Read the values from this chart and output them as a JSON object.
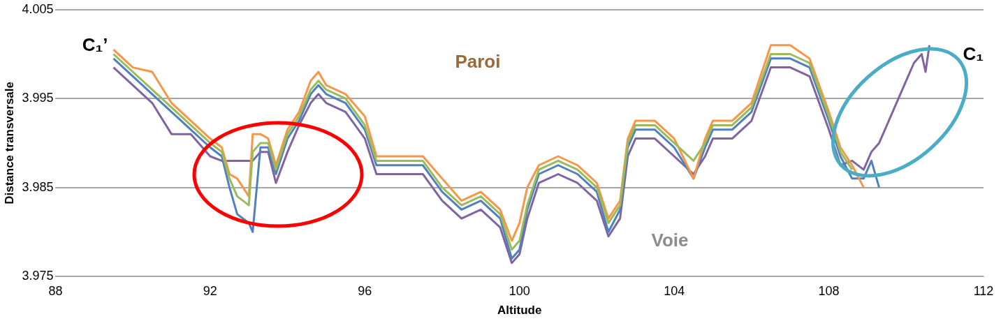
{
  "chart_data": {
    "type": "line",
    "xlabel": "Altitude",
    "ylabel": "Distance transversale",
    "xlim": [
      88,
      112
    ],
    "xticks": [
      88,
      92,
      96,
      100,
      104,
      108,
      112
    ],
    "ylim": [
      3.975,
      4.005
    ],
    "yticks": [
      3.975,
      3.985,
      3.995,
      4.005
    ],
    "grid": "y",
    "legend": false,
    "marker": "none",
    "line_style": "solid",
    "annotations": [
      "Paroi",
      "Voie",
      {
        "text": "C₁’",
        "x": 89.5,
        "y": 4.0
      },
      {
        "text": "C₁",
        "x": 110.6,
        "y": 4.001
      }
    ],
    "series": [
      {
        "color": "#9bbb59",
        "x": [
          89.5,
          90,
          90.5,
          91,
          91.5,
          92,
          92.3,
          92.5,
          92.7,
          93,
          93.1,
          93.3,
          93.5,
          93.7,
          94,
          94.3,
          94.6,
          94.8,
          95,
          95.5,
          96,
          96.3,
          96.5,
          97,
          97.5,
          98,
          98.5,
          99,
          99.5,
          99.8,
          100,
          100.2,
          100.5,
          101,
          101.5,
          102,
          102.3,
          102.6,
          102.8,
          103,
          103.5,
          104,
          104.5,
          104.8,
          105,
          105.5,
          106,
          106.5,
          107,
          107.5,
          108,
          108.3,
          108.6
        ],
        "values": [
          4.0,
          3.998,
          3.996,
          3.994,
          3.992,
          3.99,
          3.989,
          3.986,
          3.984,
          3.983,
          3.989,
          3.99,
          3.99,
          3.987,
          3.991,
          3.993,
          3.996,
          3.997,
          3.996,
          3.995,
          3.992,
          3.988,
          3.988,
          3.988,
          3.988,
          3.985,
          3.983,
          3.984,
          3.982,
          3.978,
          3.979,
          3.983,
          3.987,
          3.988,
          3.987,
          3.985,
          3.981,
          3.983,
          3.99,
          3.992,
          3.992,
          3.99,
          3.988,
          3.99,
          3.992,
          3.992,
          3.994,
          4.0,
          4.0,
          3.999,
          3.993,
          3.989,
          3.987
        ]
      },
      {
        "color": "#f79646",
        "x": [
          89.5,
          90,
          90.5,
          91,
          91.5,
          92,
          92.3,
          92.5,
          92.7,
          93,
          93.1,
          93.3,
          93.5,
          93.7,
          94,
          94.3,
          94.6,
          94.8,
          95,
          95.5,
          96,
          96.3,
          96.5,
          97,
          97.5,
          98,
          98.5,
          99,
          99.5,
          99.8,
          100,
          100.2,
          100.5,
          101,
          101.5,
          102,
          102.3,
          102.6,
          102.8,
          103,
          103.5,
          104,
          104.5,
          104.8,
          105,
          105.5,
          106,
          106.5,
          107,
          107.5,
          108,
          108.3,
          108.6,
          108.9
        ],
        "values": [
          4.0005,
          3.9985,
          3.998,
          3.9945,
          3.9925,
          3.9905,
          3.9895,
          3.9865,
          3.986,
          3.984,
          3.991,
          3.991,
          3.9905,
          3.9875,
          3.9915,
          3.9935,
          3.997,
          3.998,
          3.9965,
          3.9955,
          3.993,
          3.9885,
          3.9885,
          3.9885,
          3.9885,
          3.986,
          3.9835,
          3.9845,
          3.9825,
          3.979,
          3.981,
          3.985,
          3.9875,
          3.9885,
          3.9875,
          3.9855,
          3.9815,
          3.9835,
          3.9905,
          3.9925,
          3.9925,
          3.9905,
          3.986,
          3.9905,
          3.9925,
          3.9925,
          3.9945,
          4.001,
          4.001,
          3.9995,
          3.9935,
          3.9895,
          3.9875,
          3.985
        ]
      },
      {
        "color": "#4f81bd",
        "x": [
          89.5,
          90,
          90.5,
          91,
          91.5,
          92,
          92.3,
          92.5,
          92.7,
          93,
          93.1,
          93.3,
          93.5,
          93.7,
          94,
          94.3,
          94.6,
          94.8,
          95,
          95.5,
          96,
          96.3,
          96.5,
          97,
          97.5,
          98,
          98.5,
          99,
          99.5,
          99.8,
          100,
          100.2,
          100.5,
          101,
          101.5,
          102,
          102.3,
          102.6,
          102.8,
          103,
          103.5,
          104,
          104.5,
          104.8,
          105,
          105.5,
          106,
          106.5,
          107,
          107.5,
          108,
          108.3,
          108.6,
          108.9,
          109.1,
          109.3
        ],
        "values": [
          3.9995,
          3.9975,
          3.9955,
          3.9935,
          3.9915,
          3.9895,
          3.9885,
          3.985,
          3.982,
          3.981,
          3.98,
          3.9895,
          3.9895,
          3.9865,
          3.9905,
          3.9925,
          3.9955,
          3.9965,
          3.9955,
          3.9945,
          3.9915,
          3.9875,
          3.9875,
          3.9875,
          3.9875,
          3.9845,
          3.9825,
          3.9835,
          3.9815,
          3.977,
          3.978,
          3.9825,
          3.9865,
          3.9875,
          3.9865,
          3.9845,
          3.98,
          3.9825,
          3.9895,
          3.9915,
          3.9915,
          3.9895,
          3.986,
          3.9895,
          3.9915,
          3.9915,
          3.9935,
          3.9995,
          3.9995,
          3.9985,
          3.9925,
          3.9885,
          3.986,
          3.986,
          3.988,
          3.985
        ]
      },
      {
        "color": "#8064a2",
        "x": [
          89.5,
          90,
          90.5,
          91,
          91.5,
          92,
          92.3,
          92.5,
          92.7,
          93,
          93.1,
          93.3,
          93.5,
          93.7,
          94,
          94.3,
          94.6,
          94.8,
          95,
          95.5,
          96,
          96.3,
          96.5,
          97,
          97.5,
          98,
          98.5,
          99,
          99.5,
          99.8,
          100,
          100.2,
          100.5,
          101,
          101.5,
          102,
          102.3,
          102.6,
          102.8,
          103,
          103.5,
          104,
          104.5,
          104.8,
          105,
          105.5,
          106,
          106.5,
          107,
          107.5,
          108,
          108.3,
          108.6,
          108.9,
          109.1,
          109.3,
          109.6,
          110,
          110.2,
          110.4,
          110.5,
          110.6
        ],
        "values": [
          3.9985,
          3.9965,
          3.9945,
          3.991,
          3.991,
          3.9885,
          3.988,
          3.988,
          3.988,
          3.988,
          3.988,
          3.989,
          3.989,
          3.9855,
          3.989,
          3.992,
          3.9945,
          3.9955,
          3.9945,
          3.9935,
          3.9905,
          3.9865,
          3.9865,
          3.9865,
          3.9865,
          3.9835,
          3.9815,
          3.9825,
          3.9805,
          3.9765,
          3.9775,
          3.9815,
          3.9855,
          3.9865,
          3.9855,
          3.9835,
          3.9795,
          3.9815,
          3.9885,
          3.9905,
          3.9905,
          3.9885,
          3.9865,
          3.9885,
          3.9905,
          3.9905,
          3.9925,
          3.9985,
          3.9985,
          3.9975,
          3.9915,
          3.9875,
          3.988,
          3.987,
          3.989,
          3.99,
          3.993,
          3.997,
          3.999,
          4.0,
          3.998,
          4.001
        ]
      }
    ]
  }
}
